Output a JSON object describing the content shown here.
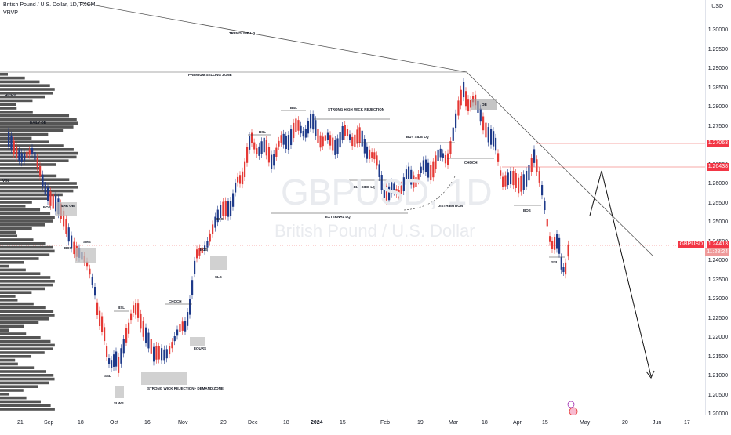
{
  "header": {
    "title": "British Pound / U.S. Dollar, 1D, FXCM",
    "indicator": "VRVP",
    "currency": "USD"
  },
  "watermark": {
    "symbol": "GBPUSD, 1D",
    "name": "British Pound / U.S. Dollar"
  },
  "price_axis": [
    "1.30000",
    "1.29500",
    "1.29000",
    "1.28500",
    "1.28000",
    "1.27500",
    "1.27000",
    "1.26500",
    "1.26000",
    "1.25500",
    "1.25000",
    "1.24500",
    "1.24000",
    "1.23500",
    "1.23000",
    "1.22500",
    "1.22000",
    "1.21500",
    "1.21000",
    "1.20500",
    "1.20000"
  ],
  "time_axis": [
    "21",
    "Sep",
    "18",
    "Oct",
    "16",
    "Nov",
    "20",
    "Dec",
    "18",
    "2024",
    "15",
    "Feb",
    "19",
    "Mar",
    "18",
    "Apr",
    "15",
    "May",
    "20",
    "Jun",
    "17"
  ],
  "price_labels": {
    "level1": "1.27063",
    "level2": "1.26438",
    "symbol": "GBPUSD",
    "current": "1.24413",
    "countdown": "11:28:24"
  },
  "annotations": {
    "trendline": "TRENDLINE LQ",
    "premium": "PREMIUM SELLING ZONE",
    "bsl1": "BSL",
    "bsl2": "BSL",
    "bsl3": "BSL",
    "ssl1": "SSL",
    "ssl2": "SSL",
    "strong_wick": "STRONG HIGH WICK REJECTION",
    "buy_side": "BUY SIDE LQ",
    "sell_side": "SELL SIDE LQ",
    "external": "EXTERNAL LQ",
    "distribution": "DISTRIBUTION",
    "choch1": "CHOCH",
    "choch2": "CHOCH",
    "ob": "OB",
    "bos1": "BOS",
    "bos2": "BOS",
    "bos3": "BOS",
    "bos4": "BOS",
    "bos5": "BOS",
    "sls": "SLS",
    "equ": "EQURS",
    "slws": "SLWS",
    "sms": "SMS",
    "demand": "STRONG WICK REJECTION+ DEMAND ZONE",
    "hob": "4HR OB",
    "daily": "DAILY OB",
    "highs": "HIGHS",
    "vol": "VOL"
  },
  "colors": {
    "bull": "#1e3a8a",
    "bear": "#e53935",
    "level": "#ef5350",
    "text": "#131722"
  }
}
